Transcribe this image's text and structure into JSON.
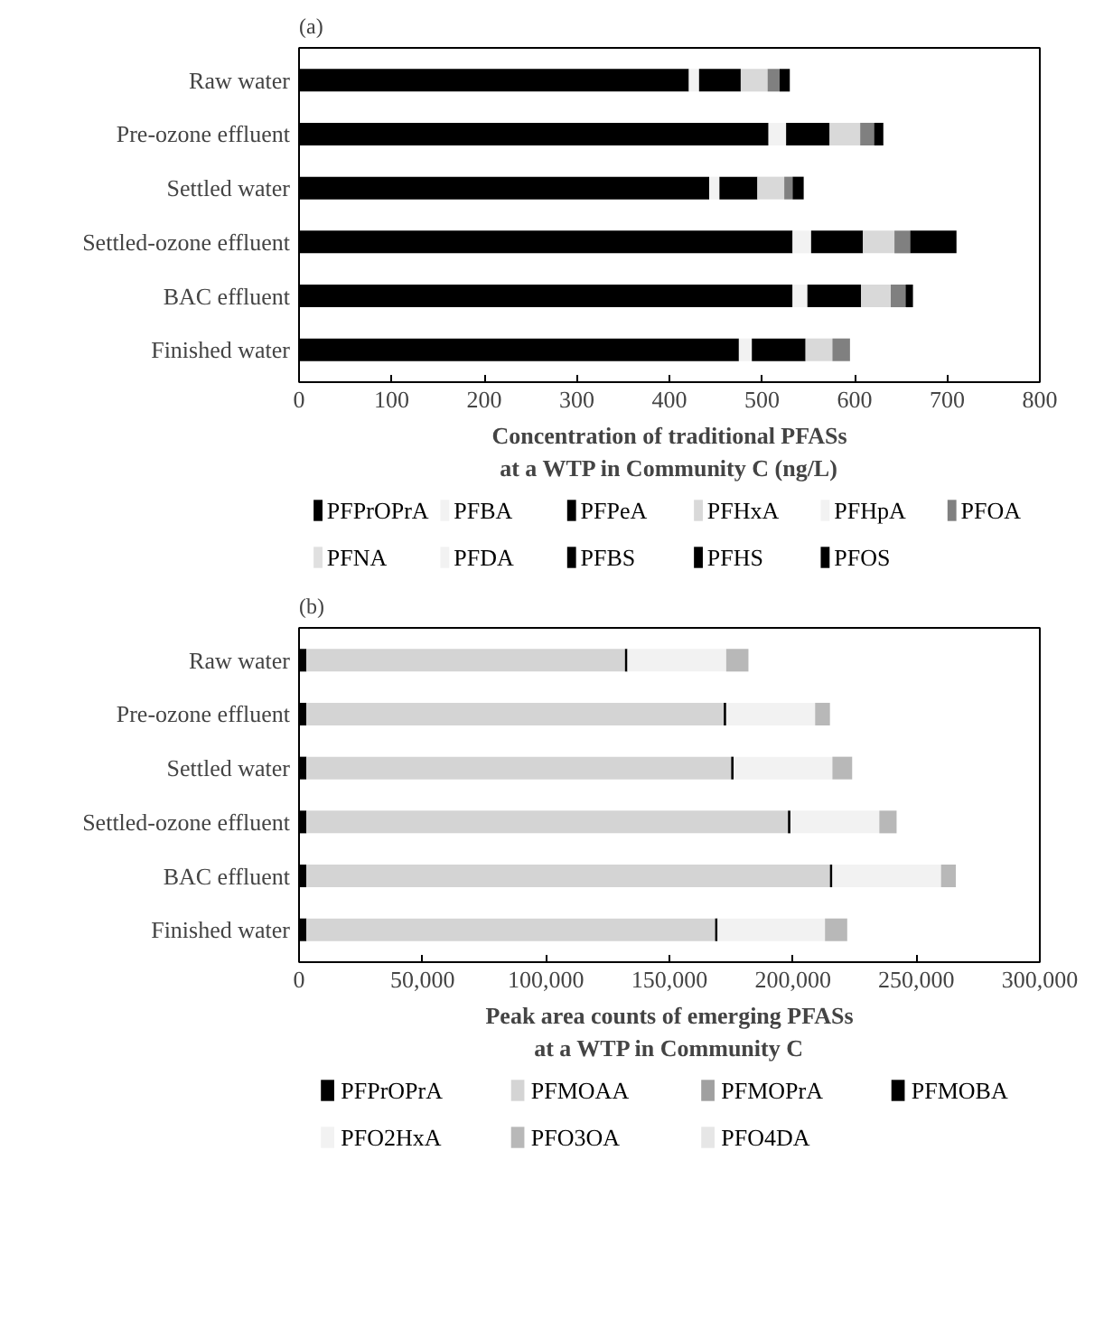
{
  "chart_data": [
    {
      "type": "bar",
      "orientation": "horizontal",
      "stacked": true,
      "title": "(a)",
      "xlabel": "Concentration of traditional PFASs\nat a WTP in Community C (ng/L)",
      "categories": [
        "Raw water",
        "Pre-ozone effluent",
        "Settled water",
        "Settled-ozone effluent",
        "BAC effluent",
        "Finished water"
      ],
      "series": [
        {
          "name": "PFPrOPrA",
          "color": "#000000",
          "values": [
            421,
            507,
            443,
            533,
            533,
            475
          ]
        },
        {
          "name": "PFBA",
          "color": "#f2f2f2",
          "values": [
            11,
            19,
            11,
            20,
            16,
            14
          ]
        },
        {
          "name": "PFPeA",
          "color": "#000000",
          "values": [
            45,
            47,
            41,
            56,
            58,
            58
          ]
        },
        {
          "name": "PFHxA",
          "color": "#d9d9d9",
          "values": [
            29,
            33,
            29,
            34,
            32,
            29
          ]
        },
        {
          "name": "PFHpA",
          "color": "#f2f2f2",
          "values": [
            0,
            0,
            0,
            0,
            0,
            0
          ]
        },
        {
          "name": "PFOA",
          "color": "#808080",
          "values": [
            13,
            15,
            9,
            17,
            16,
            19
          ]
        },
        {
          "name": "PFNA",
          "color": "#e0e0e0",
          "values": [
            0,
            0,
            0,
            0,
            0,
            0
          ]
        },
        {
          "name": "PFDA",
          "color": "#f2f2f2",
          "values": [
            0,
            0,
            0,
            0,
            0,
            0
          ]
        },
        {
          "name": "PFBS",
          "color": "#000000",
          "values": [
            0,
            0,
            0,
            0,
            0,
            0
          ]
        },
        {
          "name": "PFHS",
          "color": "#000000",
          "values": [
            0,
            0,
            0,
            0,
            0,
            0
          ]
        },
        {
          "name": "PFOS",
          "color": "#000000",
          "values": [
            11,
            10,
            12,
            50,
            8,
            0
          ]
        }
      ],
      "xlim": [
        0,
        800
      ],
      "xticks": [
        0,
        100,
        200,
        300,
        400,
        500,
        600,
        700,
        800
      ],
      "grid": false,
      "legend": "bottom"
    },
    {
      "type": "bar",
      "orientation": "horizontal",
      "stacked": true,
      "title": "(b)",
      "xlabel": "Peak area counts of emerging PFASs\nat a WTP in Community C",
      "categories": [
        "Raw water",
        "Pre-ozone effluent",
        "Settled water",
        "Settled-ozone effluent",
        "BAC effluent",
        "Finished water"
      ],
      "series": [
        {
          "name": "PFPrOPrA",
          "color": "#000000",
          "values": [
            3000,
            3000,
            3000,
            3000,
            3000,
            3000
          ]
        },
        {
          "name": "PFMOAA",
          "color": "#d4d4d4",
          "values": [
            129000,
            169000,
            172000,
            195000,
            212000,
            165500
          ]
        },
        {
          "name": "PFMOPrA",
          "color": "#a0a0a0",
          "values": [
            0,
            0,
            0,
            0,
            0,
            0
          ]
        },
        {
          "name": "PFMOBA",
          "color": "#000000",
          "values": [
            1000,
            1000,
            1000,
            1000,
            1000,
            1000
          ]
        },
        {
          "name": "PFO2HxA",
          "color": "#f2f2f2",
          "values": [
            40000,
            36000,
            40000,
            36000,
            44000,
            43500
          ]
        },
        {
          "name": "PFO3OA",
          "color": "#b8b8b8",
          "values": [
            9000,
            6000,
            8000,
            7000,
            6000,
            9000
          ]
        },
        {
          "name": "PFO4DA",
          "color": "#e6e6e6",
          "values": [
            0,
            0,
            0,
            0,
            0,
            0
          ]
        }
      ],
      "xlim": [
        0,
        300000
      ],
      "xticks": [
        0,
        {
          "value": 50000,
          "label": "50,000"
        },
        {
          "value": 100000,
          "label": "100,000"
        },
        {
          "value": 150000,
          "label": "150,000"
        },
        {
          "value": 200000,
          "label": "200,000"
        },
        {
          "value": 250000,
          "label": "250,000"
        },
        {
          "value": 300000,
          "label": "300,000"
        }
      ],
      "grid": false,
      "legend": "bottom"
    }
  ]
}
